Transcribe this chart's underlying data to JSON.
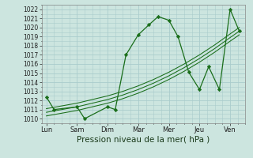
{
  "background_color": "#cce5df",
  "grid_color": "#aacccc",
  "line_color": "#1a6e1a",
  "marker_color": "#1a6e1a",
  "xlabel": "Pression niveau de la mer( hPa )",
  "xlabel_fontsize": 7.5,
  "ylim": [
    1009.5,
    1022.5
  ],
  "yticks": [
    1010,
    1011,
    1012,
    1013,
    1014,
    1015,
    1016,
    1017,
    1018,
    1019,
    1020,
    1021,
    1022
  ],
  "xtick_labels": [
    "Lun",
    "Sam",
    "Dim",
    "Mar",
    "Mer",
    "Jeu",
    "Ven"
  ],
  "xtick_positions": [
    0,
    1,
    2,
    3,
    4,
    5,
    6
  ],
  "series": [
    {
      "x": [
        0,
        0.25,
        1.0,
        1.25,
        2.0,
        2.25,
        2.6,
        3.0,
        3.35,
        3.65,
        4.0,
        4.3,
        4.65,
        5.0,
        5.3,
        5.65,
        6.0,
        6.3
      ],
      "y": [
        1012.4,
        1011.0,
        1011.3,
        1010.0,
        1011.3,
        1011.0,
        1017.0,
        1019.2,
        1020.3,
        1021.2,
        1020.8,
        1019.0,
        1015.1,
        1013.2,
        1015.7,
        1013.2,
        1022.0,
        1019.6
      ],
      "style": "line_marker"
    },
    {
      "x": [
        0,
        0.5,
        1,
        1.5,
        2,
        2.5,
        3,
        3.5,
        4,
        4.5,
        5,
        5.5,
        6,
        6.3
      ],
      "y": [
        1010.3,
        1010.6,
        1010.9,
        1011.3,
        1011.7,
        1012.2,
        1012.8,
        1013.5,
        1014.3,
        1015.2,
        1016.2,
        1017.3,
        1018.5,
        1019.2
      ],
      "style": "trend"
    },
    {
      "x": [
        0,
        0.5,
        1,
        1.5,
        2,
        2.5,
        3,
        3.5,
        4,
        4.5,
        5,
        5.5,
        6,
        6.3
      ],
      "y": [
        1010.7,
        1011.0,
        1011.3,
        1011.7,
        1012.1,
        1012.6,
        1013.2,
        1013.9,
        1014.7,
        1015.6,
        1016.6,
        1017.7,
        1018.9,
        1019.6
      ],
      "style": "trend"
    },
    {
      "x": [
        0,
        0.5,
        1,
        1.5,
        2,
        2.5,
        3,
        3.5,
        4,
        4.5,
        5,
        5.5,
        6,
        6.3
      ],
      "y": [
        1011.1,
        1011.4,
        1011.7,
        1012.1,
        1012.5,
        1013.0,
        1013.6,
        1014.3,
        1015.1,
        1016.0,
        1017.0,
        1018.1,
        1019.3,
        1020.0
      ],
      "style": "trend"
    }
  ]
}
